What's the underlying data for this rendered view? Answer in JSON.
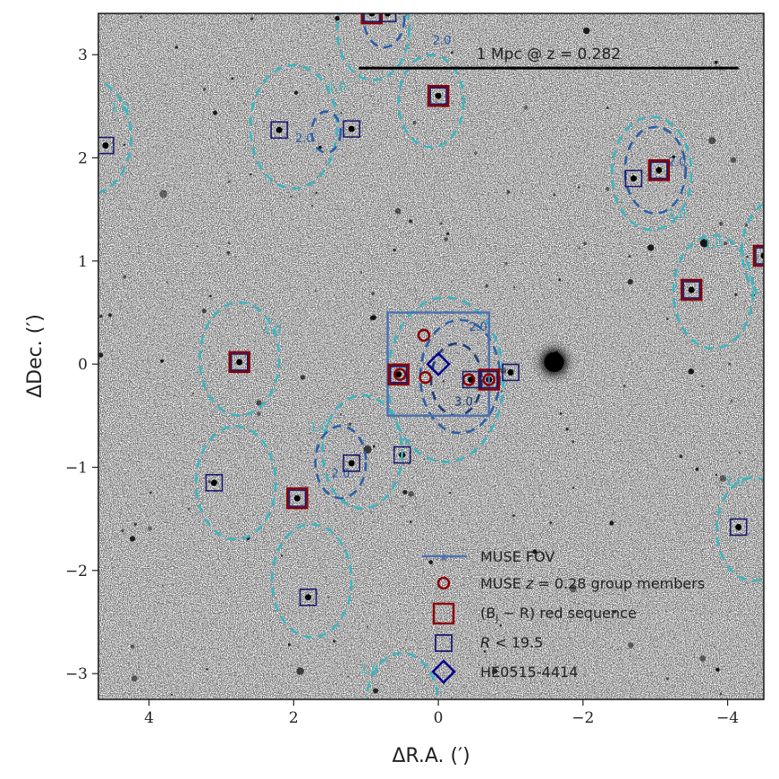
{
  "chart_data": {
    "type": "scatter",
    "title": "",
    "xlabel": "ΔR.A. (′)",
    "ylabel": "ΔDec. (′)",
    "xlim": [
      4.7,
      -4.5
    ],
    "ylim": [
      -3.25,
      3.4
    ],
    "x_reversed": true,
    "x_ticks": [
      4,
      2,
      0,
      -2,
      -4
    ],
    "x_tick_labels": [
      "4",
      "2",
      "0",
      "−2",
      "−4"
    ],
    "y_ticks": [
      3,
      2,
      1,
      0,
      -1,
      -2,
      -3
    ],
    "y_tick_labels": [
      "3",
      "2",
      "1",
      "0",
      "−1",
      "−2",
      "−3"
    ],
    "grid": false,
    "legend_position": "bottom-right",
    "background": "greyscale sky image",
    "scale_bar": {
      "label": "1 Mpc @ z = 0.282",
      "x_start": 1.1,
      "x_end": -4.15,
      "y": 2.87
    },
    "muse_fov": {
      "label": "MUSE FOV",
      "x_min": -0.7,
      "x_max": 0.7,
      "y_min": -0.5,
      "y_max": 0.5,
      "color": "#4c72b0"
    },
    "series": [
      {
        "name": "MUSE z = 0.28 group members",
        "marker": "circle",
        "color": "#8b0000",
        "points": [
          [
            0.2,
            0.28
          ],
          [
            0.53,
            -0.1
          ],
          [
            0.18,
            -0.13
          ],
          [
            -0.42,
            -0.15
          ],
          [
            -0.7,
            -0.15
          ]
        ]
      },
      {
        "name": "(B_j − R) red sequence",
        "marker": "square-large",
        "color": "#8b0000",
        "points": [
          [
            0.92,
            3.4
          ],
          [
            0.0,
            2.6
          ],
          [
            -3.05,
            1.88
          ],
          [
            -3.5,
            0.72
          ],
          [
            -4.5,
            1.05
          ],
          [
            2.75,
            0.02
          ],
          [
            1.95,
            -1.3
          ],
          [
            0.55,
            -0.1
          ],
          [
            -0.7,
            -0.15
          ]
        ]
      },
      {
        "name": "R < 19.5",
        "marker": "square-small",
        "color": "#1a1a6e",
        "points": [
          [
            0.92,
            3.4
          ],
          [
            0.7,
            3.4
          ],
          [
            0.0,
            2.6
          ],
          [
            2.2,
            2.27
          ],
          [
            1.2,
            2.28
          ],
          [
            4.6,
            2.12
          ],
          [
            -2.7,
            1.8
          ],
          [
            -3.05,
            1.88
          ],
          [
            -3.5,
            0.72
          ],
          [
            -4.5,
            1.05
          ],
          [
            2.75,
            0.02
          ],
          [
            0.55,
            -0.1
          ],
          [
            -0.45,
            -0.15
          ],
          [
            -0.7,
            -0.15
          ],
          [
            -1.0,
            -0.08
          ],
          [
            1.2,
            -0.96
          ],
          [
            0.5,
            -0.88
          ],
          [
            3.1,
            -1.15
          ],
          [
            1.95,
            -1.3
          ],
          [
            1.8,
            -2.26
          ],
          [
            -4.15,
            -1.58
          ]
        ]
      },
      {
        "name": "HE0515-4414",
        "marker": "diamond",
        "color": "#00008b",
        "points": [
          [
            0.0,
            0.0
          ]
        ]
      }
    ],
    "contours": {
      "levels": [
        1.0,
        2.0,
        3.0
      ],
      "colors": {
        "1.0": "#3bb5c0",
        "2.0": "#2a5ea8",
        "3.0": "#1c3c78"
      },
      "labels": [
        {
          "text": "1.0",
          "x": 1.4,
          "y": 2.65,
          "level": "1.0"
        },
        {
          "text": "2.0",
          "x": -0.05,
          "y": 3.1,
          "level": "2.0"
        },
        {
          "text": "2.0",
          "x": 1.85,
          "y": 2.15,
          "level": "2.0"
        },
        {
          "text": "1.0",
          "x": 4.4,
          "y": 2.45,
          "level": "1.0"
        },
        {
          "text": "2.0",
          "x": -3.3,
          "y": 1.92,
          "level": "2.0"
        },
        {
          "text": "1.0",
          "x": -3.3,
          "y": 1.42,
          "level": "1.0"
        },
        {
          "text": "1.0",
          "x": -3.8,
          "y": 1.13,
          "level": "1.0"
        },
        {
          "text": "1.0",
          "x": 2.3,
          "y": 0.3,
          "level": "1.0"
        },
        {
          "text": "2.0",
          "x": -0.55,
          "y": 0.32,
          "level": "2.0"
        },
        {
          "text": "3.0",
          "x": -0.35,
          "y": -0.4,
          "level": "3.0"
        },
        {
          "text": "1.0",
          "x": 1.65,
          "y": -0.65,
          "level": "1.0"
        },
        {
          "text": "2.0",
          "x": 1.35,
          "y": -1.1,
          "level": "2.0"
        },
        {
          "text": "1.0",
          "x": -4.1,
          "y": -1.18,
          "level": "1.0"
        },
        {
          "text": "1.0",
          "x": 0.95,
          "y": -3.0,
          "level": "1.0"
        }
      ]
    },
    "legend": [
      {
        "label_parts": [
          "MUSE ",
          "z",
          " = 0.28 group members"
        ],
        "marker": "line-star"
      },
      {
        "label_parts": [
          "MUSE ",
          "z",
          " = 0.28 group members"
        ],
        "marker": "circle"
      },
      {
        "label_parts": [
          "(B",
          "j",
          " − R) red sequence"
        ],
        "marker": "square-large"
      },
      {
        "label_parts": [
          "R",
          " < 19.5"
        ],
        "marker": "square-small"
      },
      {
        "label_parts": [
          "HE0515-4414"
        ],
        "marker": "diamond"
      }
    ]
  },
  "legend_labels": {
    "fov": "MUSE FOV",
    "members_prefix": "MUSE ",
    "members_z": "z",
    "members_suffix": " = 0.28 group members",
    "red_prefix": "(B",
    "red_sub": "j",
    "red_suffix": " − R) red sequence",
    "bright_r": "R",
    "bright_suffix": " < 19.5",
    "qso": "HE0515-4414"
  },
  "colors": {
    "fov": "#4c72b0",
    "members": "#8b0000",
    "red_sequence": "#8b0000",
    "bright": "#1a1a6e",
    "qso": "#00008b",
    "contour_1": "#3bb5c0",
    "contour_2": "#2a5ea8",
    "contour_3": "#1c3c78"
  }
}
